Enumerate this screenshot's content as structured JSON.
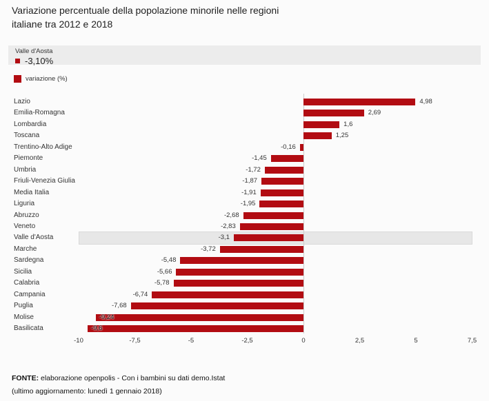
{
  "title": {
    "line1": "Variazione percentuale della popolazione minorile nelle regioni",
    "line2": "italiane tra 2012 e 2018"
  },
  "tooltip": {
    "region": "Valle d'Aosta",
    "value": "-3,10%"
  },
  "legend": {
    "label": "variazione (%)"
  },
  "colors": {
    "bar_red": "#b20c12",
    "highlight_band": "#e7e7e7",
    "background": "#fbfbfb"
  },
  "chart_data": {
    "type": "bar",
    "orientation": "horizontal",
    "title": "Variazione percentuale della popolazione minorile nelle regioni italiane tra 2012 e 2018",
    "series_name": "variazione (%)",
    "xlim": [
      -10,
      7.5
    ],
    "grid": "zero-line-only",
    "x_ticks": [
      {
        "value": -10,
        "label": "-10"
      },
      {
        "value": -7.5,
        "label": "-7,5"
      },
      {
        "value": -5,
        "label": "-5"
      },
      {
        "value": -2.5,
        "label": "-2,5"
      },
      {
        "value": 0,
        "label": "0"
      },
      {
        "value": 2.5,
        "label": "2,5"
      },
      {
        "value": 5,
        "label": "5"
      },
      {
        "value": 7.5,
        "label": "7,5"
      }
    ],
    "regions": [
      {
        "label": "Lazio",
        "value": 4.98,
        "display": "4,98"
      },
      {
        "label": "Emilia-Romagna",
        "value": 2.69,
        "display": "2,69"
      },
      {
        "label": "Lombardia",
        "value": 1.6,
        "display": "1,6"
      },
      {
        "label": "Toscana",
        "value": 1.25,
        "display": "1,25"
      },
      {
        "label": "Trentino-Alto Adige",
        "value": -0.16,
        "display": "-0,16"
      },
      {
        "label": "Piemonte",
        "value": -1.45,
        "display": "-1,45"
      },
      {
        "label": "Umbria",
        "value": -1.72,
        "display": "-1,72"
      },
      {
        "label": "Friuli-Venezia Giulia",
        "value": -1.87,
        "display": "-1,87"
      },
      {
        "label": "Media Italia",
        "value": -1.91,
        "display": "-1,91"
      },
      {
        "label": "Liguria",
        "value": -1.95,
        "display": "-1,95"
      },
      {
        "label": "Abruzzo",
        "value": -2.68,
        "display": "-2,68"
      },
      {
        "label": "Veneto",
        "value": -2.83,
        "display": "-2,83"
      },
      {
        "label": "Valle d'Aosta",
        "value": -3.1,
        "display": "-3,1",
        "highlight": true
      },
      {
        "label": "Marche",
        "value": -3.72,
        "display": "-3,72"
      },
      {
        "label": "Sardegna",
        "value": -5.48,
        "display": "-5,48"
      },
      {
        "label": "Sicilia",
        "value": -5.66,
        "display": "-5,66"
      },
      {
        "label": "Calabria",
        "value": -5.78,
        "display": "-5,78"
      },
      {
        "label": "Campania",
        "value": -6.74,
        "display": "-6,74"
      },
      {
        "label": "Puglia",
        "value": -7.68,
        "display": "-7,68"
      },
      {
        "label": "Molise",
        "value": -9.24,
        "display": "-9,24",
        "label_inside": true
      },
      {
        "label": "Basilicata",
        "value": -9.6,
        "display": "-9,6",
        "label_inside": true
      }
    ]
  },
  "footer": {
    "fonte_label": "FONTE:",
    "fonte_text": "elaborazione openpolis - Con i bambini su dati demo.Istat",
    "update_text": "(ultimo aggiornamento: lunedì 1 gennaio 2018)"
  }
}
